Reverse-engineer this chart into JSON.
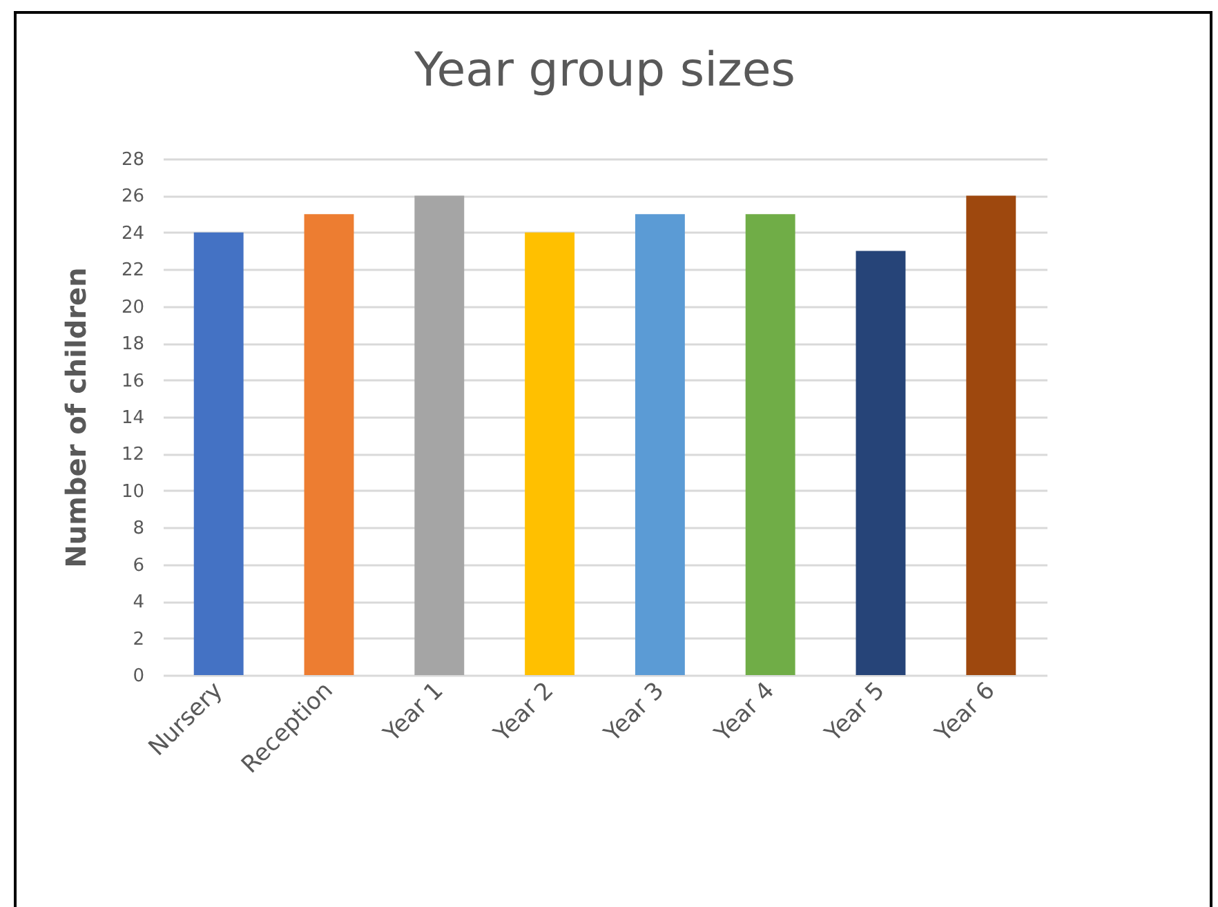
{
  "chart_data": {
    "type": "bar",
    "title": "Year group sizes",
    "ylabel": "Number of children",
    "categories": [
      "Nursery",
      "Reception",
      "Year 1",
      "Year 2",
      "Year 3",
      "Year 4",
      "Year 5",
      "Year 6"
    ],
    "values": [
      24,
      25,
      26,
      24,
      25,
      25,
      23,
      26
    ],
    "colors": [
      "#4472c4",
      "#ed7d31",
      "#a5a5a5",
      "#ffc000",
      "#5b9bd5",
      "#70ad47",
      "#264478",
      "#9e480e"
    ],
    "ylim": [
      0,
      28
    ],
    "yticks": [
      0,
      2,
      4,
      6,
      8,
      10,
      12,
      14,
      16,
      18,
      20,
      22,
      24,
      26,
      28
    ],
    "grid": "y"
  }
}
